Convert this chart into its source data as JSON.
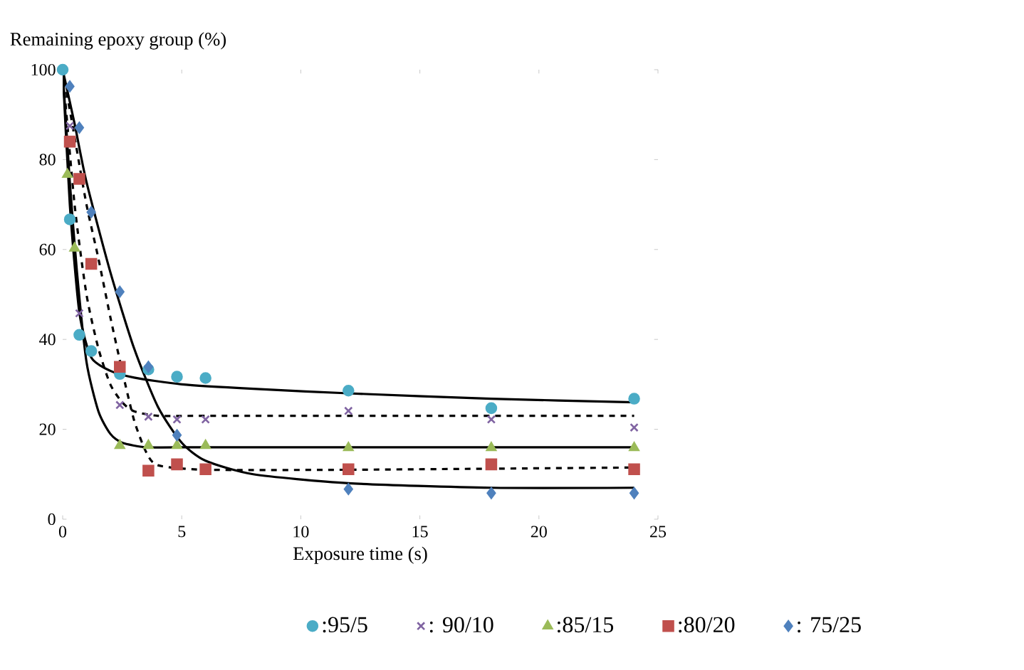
{
  "chart_data": {
    "type": "scatter",
    "xlabel": "Exposure time (s)",
    "ylabel": "Remaining epoxy group (%)",
    "xlim": [
      0,
      25
    ],
    "ylim": [
      0,
      100
    ],
    "xticks": [
      0,
      5,
      10,
      15,
      20,
      25
    ],
    "yticks": [
      0,
      20,
      40,
      60,
      80,
      100
    ],
    "grid": false,
    "legend": "bottom",
    "series": [
      {
        "name": ":95/5",
        "marker": "circle",
        "color": "#4bacc6",
        "x": [
          0,
          0.3,
          0.7,
          1.2,
          2.4,
          3.6,
          4.8,
          6,
          12,
          18,
          24
        ],
        "values": [
          100,
          66.7,
          41,
          37.4,
          32.3,
          33.3,
          31.7,
          31.4,
          28.6,
          24.7,
          26.8
        ]
      },
      {
        "name": ": 90/10",
        "marker": "cross",
        "color": "#8064a2",
        "x": [
          0.3,
          0.7,
          2.4,
          3.6,
          4.8,
          6,
          12,
          18,
          24
        ],
        "values": [
          87.5,
          45.8,
          25.4,
          22.8,
          22.2,
          22.2,
          24.1,
          22.2,
          20.4
        ]
      },
      {
        "name": ":85/15",
        "marker": "triangle",
        "color": "#9bbb59",
        "x": [
          0.2,
          0.5,
          2.4,
          3.6,
          4.8,
          6,
          12,
          18,
          24
        ],
        "values": [
          76.7,
          60.3,
          16.4,
          16.4,
          16.4,
          16.4,
          15.9,
          15.9,
          15.9
        ]
      },
      {
        "name": ":80/20",
        "marker": "square",
        "color": "#c0504d",
        "x": [
          0.3,
          0.7,
          1.2,
          2.4,
          3.6,
          4.8,
          6,
          12,
          18,
          24
        ],
        "values": [
          84,
          75.7,
          56.8,
          33.9,
          10.8,
          12.2,
          11.1,
          11.1,
          12.2,
          11.1
        ]
      },
      {
        "name": ": 75/25",
        "marker": "diamond",
        "color": "#4f81bd",
        "x": [
          0.3,
          0.7,
          1.2,
          2.4,
          3.6,
          4.8,
          12,
          18,
          24
        ],
        "values": [
          96.3,
          87.1,
          68.3,
          50.6,
          33.9,
          18.7,
          6.7,
          5.8,
          5.8
        ]
      },
      {
        "type": "line",
        "line_style": "solid",
        "color": "#000000",
        "x": [
          0,
          0.3,
          0.7,
          1.2,
          2,
          3,
          5,
          8,
          12,
          18,
          24
        ],
        "values": [
          100,
          70,
          46,
          36,
          33,
          31.5,
          30,
          29,
          28,
          26.8,
          26
        ]
      },
      {
        "type": "line",
        "line_style": "dashed",
        "color": "#000000",
        "x": [
          0,
          0.5,
          1,
          1.5,
          2,
          2.5,
          3,
          4,
          6,
          12,
          24
        ],
        "values": [
          100,
          70,
          50,
          38,
          30,
          26,
          24,
          23,
          23,
          23,
          23
        ]
      },
      {
        "type": "line",
        "line_style": "solid",
        "color": "#000000",
        "x": [
          0,
          0.3,
          0.6,
          1,
          1.5,
          2,
          2.5,
          3.5,
          5,
          12,
          24
        ],
        "values": [
          100,
          75,
          55,
          35,
          24,
          19,
          17,
          16,
          16,
          16,
          16
        ]
      },
      {
        "type": "line",
        "line_style": "dashed",
        "color": "#000000",
        "x": [
          0,
          0.5,
          1,
          1.5,
          2,
          2.5,
          3,
          3.5,
          4,
          6,
          12,
          24
        ],
        "values": [
          100,
          85,
          70,
          58,
          45,
          33,
          22,
          15,
          12,
          11,
          11,
          11.5
        ]
      },
      {
        "type": "line",
        "line_style": "solid",
        "color": "#000000",
        "x": [
          0,
          0.5,
          1,
          2,
          3,
          4,
          5,
          6,
          8,
          12,
          18,
          24
        ],
        "values": [
          100,
          88,
          75,
          55,
          38,
          25,
          17,
          13,
          10,
          8,
          7,
          7
        ]
      }
    ]
  }
}
